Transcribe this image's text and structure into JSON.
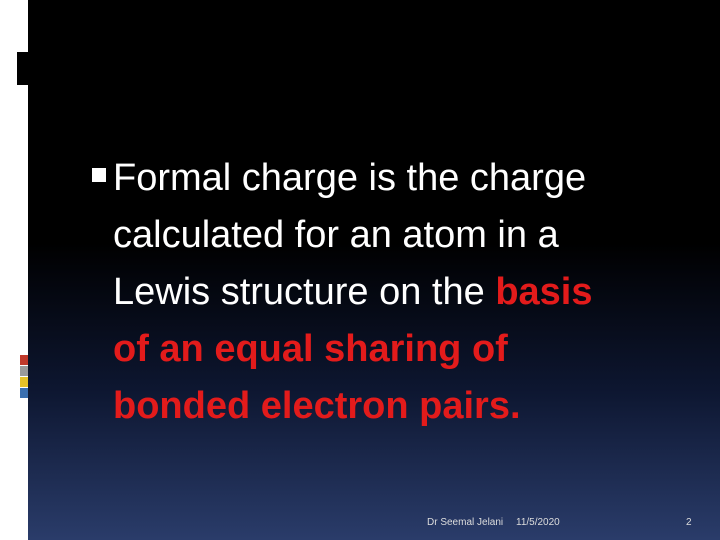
{
  "body": {
    "lines": [
      [
        {
          "text": "Formal charge is the charge",
          "color": "#ffffff"
        }
      ],
      [
        {
          "text": "calculated for an atom in a",
          "color": "#ffffff"
        }
      ],
      [
        {
          "text": "Lewis structure on the ",
          "color": "#ffffff"
        },
        {
          "text": "basis",
          "color": "#e31b1b"
        }
      ],
      [
        {
          "text": "of an equal sharing of",
          "color": "#e31b1b"
        }
      ],
      [
        {
          "text": "bonded electron pairs.",
          "color": "#e31b1b"
        }
      ]
    ]
  },
  "footer": {
    "author": "Dr Seemal Jelani",
    "date": "11/5/2020",
    "page": "2"
  }
}
